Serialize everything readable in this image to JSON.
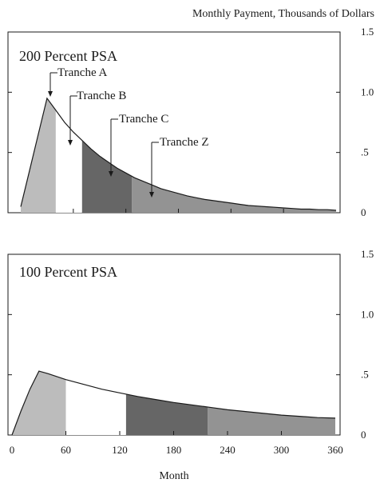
{
  "chart_data": [
    {
      "type": "area",
      "title": "200 Percent PSA",
      "ylabel": "Monthly Payment, Thousands of Dollars",
      "ylim": [
        0,
        1.5
      ],
      "xlim": [
        0,
        360
      ],
      "y_ticks": [
        0,
        0.5,
        1.0,
        1.5
      ],
      "y_tick_labels": [
        "0",
        ".5",
        "1.0",
        "1.5"
      ],
      "x": [
        0,
        10,
        20,
        30,
        40,
        50,
        60,
        70,
        80,
        90,
        100,
        110,
        120,
        130,
        140,
        150,
        160,
        170,
        180,
        190,
        200,
        210,
        220,
        230,
        240,
        250,
        260,
        270,
        280,
        290,
        300,
        310,
        320,
        330,
        340,
        350,
        360
      ],
      "total_payment": [
        0.05,
        0.35,
        0.65,
        0.95,
        0.85,
        0.75,
        0.67,
        0.6,
        0.53,
        0.47,
        0.42,
        0.37,
        0.33,
        0.29,
        0.26,
        0.23,
        0.2,
        0.18,
        0.16,
        0.14,
        0.125,
        0.11,
        0.1,
        0.09,
        0.08,
        0.07,
        0.06,
        0.055,
        0.05,
        0.045,
        0.04,
        0.035,
        0.03,
        0.03,
        0.025,
        0.025,
        0.02
      ],
      "series": [
        {
          "name": "Tranche A",
          "x_range": [
            0,
            40
          ],
          "color": "#bcbcbc"
        },
        {
          "name": "Tranche B",
          "x_range": [
            40,
            70
          ],
          "color": "#ffffff"
        },
        {
          "name": "Tranche C",
          "x_range": [
            70,
            127
          ],
          "color": "#666666"
        },
        {
          "name": "Tranche Z",
          "x_range": [
            127,
            360
          ],
          "color": "#939393"
        }
      ],
      "annotations": [
        "Tranche A",
        "Tranche B",
        "Tranche C",
        "Tranche Z"
      ]
    },
    {
      "type": "area",
      "title": "100 Percent PSA",
      "xlabel": "Month",
      "ylim": [
        0,
        1.5
      ],
      "xlim": [
        0,
        360
      ],
      "x_ticks": [
        0,
        60,
        120,
        180,
        240,
        300,
        360
      ],
      "x_tick_labels": [
        "0",
        "60",
        "120",
        "180",
        "240",
        "300",
        "360"
      ],
      "y_ticks": [
        0,
        0.5,
        1.0,
        1.5
      ],
      "y_tick_labels": [
        "0",
        ".5",
        "1.0",
        "1.5"
      ],
      "x": [
        0,
        10,
        20,
        30,
        40,
        60,
        80,
        100,
        120,
        140,
        160,
        180,
        200,
        220,
        240,
        260,
        280,
        300,
        320,
        340,
        360
      ],
      "total_payment": [
        0.0,
        0.2,
        0.38,
        0.53,
        0.51,
        0.46,
        0.42,
        0.38,
        0.35,
        0.32,
        0.295,
        0.27,
        0.25,
        0.23,
        0.21,
        0.195,
        0.18,
        0.165,
        0.155,
        0.145,
        0.14
      ],
      "series": [
        {
          "name": "Tranche A",
          "x_range": [
            0,
            60
          ],
          "color": "#bcbcbc"
        },
        {
          "name": "Tranche B",
          "x_range": [
            60,
            127
          ],
          "color": "#ffffff"
        },
        {
          "name": "Tranche C",
          "x_range": [
            127,
            218
          ],
          "color": "#666666"
        },
        {
          "name": "Tranche Z",
          "x_range": [
            218,
            360
          ],
          "color": "#939393"
        }
      ]
    }
  ]
}
